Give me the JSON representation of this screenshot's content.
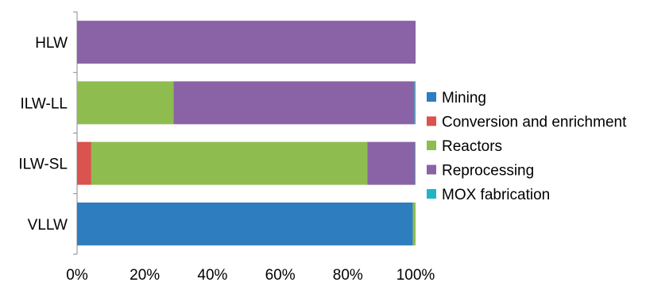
{
  "chart_data": {
    "type": "bar",
    "orientation": "horizontal",
    "stacked": "percent",
    "title": "",
    "xlabel": "",
    "ylabel": "",
    "categories": [
      "HLW",
      "ILW-LL",
      "ILW-SL",
      "VLLW"
    ],
    "x_ticks": [
      "0%",
      "20%",
      "40%",
      "60%",
      "80%",
      "100%"
    ],
    "xlim": [
      0,
      100
    ],
    "grid": false,
    "legend_position": "right",
    "series": [
      {
        "name": "Mining",
        "color": "#2e7dbf",
        "values": [
          0,
          0,
          0,
          99.2
        ]
      },
      {
        "name": "Conversion and enrichment",
        "color": "#d9534f",
        "values": [
          0,
          0,
          4.2,
          0
        ]
      },
      {
        "name": "Reactors",
        "color": "#8fbc4f",
        "values": [
          0,
          28.5,
          81.6,
          0.8
        ]
      },
      {
        "name": "Reprocessing",
        "color": "#8a63a6",
        "values": [
          100,
          71.2,
          14.0,
          0
        ]
      },
      {
        "name": "MOX fabrication",
        "color": "#1fb5c9",
        "values": [
          0,
          0.3,
          0.2,
          0
        ]
      }
    ]
  }
}
